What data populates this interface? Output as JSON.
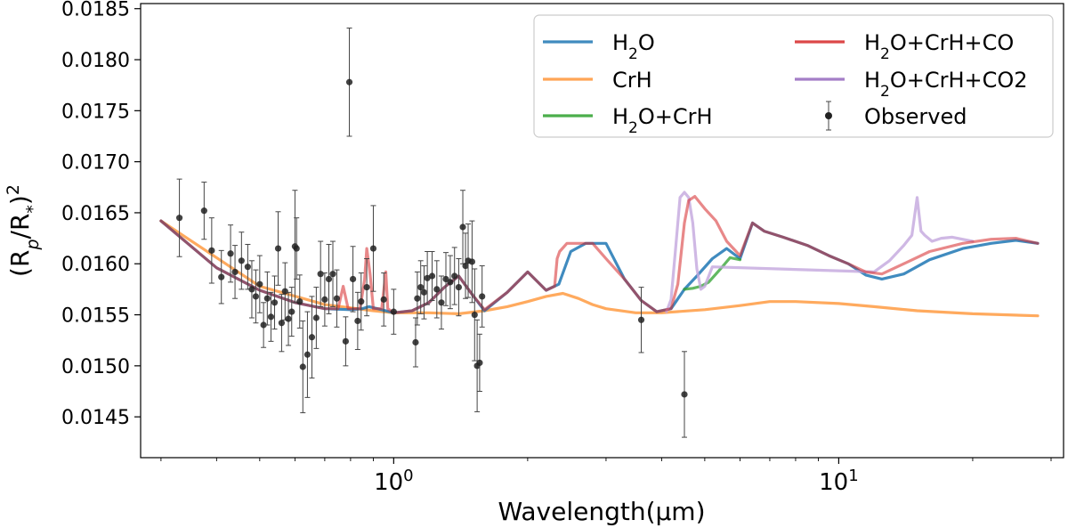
{
  "chart_data": {
    "type": "line",
    "title": "",
    "xlabel": "Wavelength(μm)",
    "ylabel": "(Rp/R*)^2",
    "xscale": "log",
    "xlim": [
      0.27,
      32
    ],
    "ylim": [
      0.0141,
      0.01855
    ],
    "x_ticks": [
      1,
      10
    ],
    "x_tick_labels": [
      "10^0",
      "10^1"
    ],
    "y_ticks": [
      0.0145,
      0.015,
      0.0155,
      0.016,
      0.0165,
      0.017,
      0.0175,
      0.018,
      0.0185
    ],
    "y_tick_labels": [
      "0.0145",
      "0.0150",
      "0.0155",
      "0.0160",
      "0.0165",
      "0.0170",
      "0.0175",
      "0.0180",
      "0.0185"
    ],
    "legend": {
      "location": "top-right",
      "columns": 2,
      "entries": [
        {
          "label": "H2O",
          "color": "#1f77b4"
        },
        {
          "label": "CrH",
          "color": "#ff7f0e"
        },
        {
          "label": "H2O+CrH",
          "color": "#2ca02c"
        },
        {
          "label": "H2O+CrH+CO",
          "color": "#d62728"
        },
        {
          "label": "H2O+CrH+CO2",
          "color": "#9467bd"
        },
        {
          "label": "Observed",
          "color": "#222222"
        }
      ]
    },
    "series": [
      {
        "name": "H2O",
        "color": "#1f77b4",
        "x": [
          0.3,
          0.4,
          0.5,
          0.6,
          0.7,
          0.8,
          0.85,
          0.88,
          0.92,
          1.0,
          1.1,
          1.2,
          1.3,
          1.4,
          1.5,
          1.6,
          1.8,
          2.0,
          2.2,
          2.35,
          2.5,
          2.7,
          3.0,
          3.3,
          3.6,
          3.9,
          4.2,
          4.5,
          4.8,
          5.2,
          5.6,
          6.0,
          6.4,
          6.8,
          7.5,
          8.5,
          9.5,
          10.5,
          11.5,
          12.5,
          14,
          16,
          19,
          22,
          25,
          28
        ],
        "y": [
          0.01642,
          0.01596,
          0.01574,
          0.01562,
          0.01556,
          0.01555,
          0.01556,
          0.01558,
          0.01556,
          0.01552,
          0.01554,
          0.01562,
          0.01577,
          0.01588,
          0.0157,
          0.01554,
          0.01572,
          0.01592,
          0.01574,
          0.0158,
          0.01612,
          0.0162,
          0.0162,
          0.01585,
          0.01564,
          0.01553,
          0.01556,
          0.01575,
          0.01588,
          0.01605,
          0.01615,
          0.01605,
          0.0164,
          0.01632,
          0.01626,
          0.01618,
          0.01608,
          0.016,
          0.01589,
          0.01585,
          0.0159,
          0.01604,
          0.01615,
          0.0162,
          0.01623,
          0.0162
        ]
      },
      {
        "name": "CrH",
        "color": "#ffaa5e",
        "x": [
          0.3,
          0.5,
          0.7,
          0.9,
          1.0,
          1.2,
          1.4,
          1.6,
          1.8,
          2.0,
          2.2,
          2.4,
          2.6,
          2.8,
          3.0,
          3.5,
          4.0,
          5.0,
          6.0,
          7.0,
          8.0,
          10,
          12,
          15,
          20,
          28
        ],
        "y": [
          0.01642,
          0.01578,
          0.0156,
          0.01554,
          0.01552,
          0.01552,
          0.01551,
          0.01554,
          0.01558,
          0.01563,
          0.01568,
          0.01571,
          0.01566,
          0.0156,
          0.01556,
          0.01552,
          0.01552,
          0.01555,
          0.01559,
          0.01563,
          0.01563,
          0.01561,
          0.01558,
          0.01554,
          0.01551,
          0.01549
        ]
      },
      {
        "name": "H2O+CrH",
        "color": "#2ca02c",
        "x": [
          4.5,
          4.7,
          4.9,
          5.1,
          5.3,
          5.5,
          5.7,
          6.0
        ],
        "y": [
          0.01575,
          0.01576,
          0.01578,
          0.01582,
          0.0159,
          0.01598,
          0.01606,
          0.01604
        ]
      },
      {
        "name": "H2O+CrH+CO",
        "color": "#d62728",
        "x": [
          0.3,
          0.4,
          0.5,
          0.6,
          0.7,
          0.75,
          0.77,
          0.79,
          0.82,
          0.84,
          0.86,
          0.87,
          0.885,
          0.9,
          0.94,
          0.96,
          0.97,
          1.0,
          1.1,
          1.2,
          1.3,
          1.4,
          1.5,
          1.6,
          1.8,
          2.0,
          2.2,
          2.3,
          2.33,
          2.36,
          2.45,
          2.6,
          2.8,
          3.0,
          3.3,
          3.6,
          3.9,
          4.2,
          4.35,
          4.5,
          4.6,
          4.75,
          5.0,
          5.3,
          5.6,
          6.0,
          6.4,
          6.8,
          7.5,
          8.5,
          9.5,
          10.5,
          11.5,
          12.5,
          14,
          16,
          19,
          22,
          25,
          28
        ],
        "y": [
          0.01642,
          0.01596,
          0.01574,
          0.01562,
          0.01556,
          0.01556,
          0.01578,
          0.01556,
          0.01556,
          0.01556,
          0.01584,
          0.01615,
          0.0159,
          0.01556,
          0.01556,
          0.01592,
          0.01556,
          0.01552,
          0.01554,
          0.01562,
          0.01577,
          0.01588,
          0.0157,
          0.01555,
          0.01572,
          0.01592,
          0.01574,
          0.01578,
          0.01605,
          0.01612,
          0.0162,
          0.0162,
          0.0162,
          0.01605,
          0.01585,
          0.01564,
          0.01553,
          0.01556,
          0.0158,
          0.0164,
          0.01662,
          0.01666,
          0.01654,
          0.01642,
          0.01622,
          0.01608,
          0.0164,
          0.01632,
          0.01626,
          0.01618,
          0.01608,
          0.016,
          0.01592,
          0.0159,
          0.016,
          0.01612,
          0.0162,
          0.01624,
          0.01625,
          0.0162
        ]
      },
      {
        "name": "H2O+CrH+CO2",
        "color": "#c3a6dd",
        "x": [
          4.1,
          4.2,
          4.3,
          4.4,
          4.5,
          4.6,
          4.7,
          4.8,
          4.9,
          5.0,
          5.2,
          12.0,
          13.0,
          14.0,
          14.6,
          15.0,
          15.3,
          15.6,
          16.2,
          17,
          18,
          20
        ],
        "y": [
          0.01553,
          0.01565,
          0.01615,
          0.01665,
          0.0167,
          0.01665,
          0.0164,
          0.01595,
          0.01575,
          0.01578,
          0.01597,
          0.01592,
          0.01603,
          0.01618,
          0.01628,
          0.01665,
          0.01632,
          0.01628,
          0.01622,
          0.01625,
          0.01626,
          0.01622
        ]
      }
    ],
    "observed": {
      "label": "Observed",
      "color": "#222222",
      "points": [
        [
          0.33,
          0.01645,
          0.00038
        ],
        [
          0.375,
          0.01652,
          0.00028
        ],
        [
          0.39,
          0.01613,
          0.00032
        ],
        [
          0.41,
          0.01587,
          0.00026
        ],
        [
          0.43,
          0.0161,
          0.00028
        ],
        [
          0.44,
          0.01592,
          0.00026
        ],
        [
          0.455,
          0.01603,
          0.00028
        ],
        [
          0.47,
          0.01597,
          0.00022
        ],
        [
          0.48,
          0.01575,
          0.00028
        ],
        [
          0.49,
          0.01568,
          0.00026
        ],
        [
          0.5,
          0.0158,
          0.00028
        ],
        [
          0.51,
          0.0154,
          0.00022
        ],
        [
          0.52,
          0.01566,
          0.00026
        ],
        [
          0.53,
          0.01548,
          0.00024
        ],
        [
          0.54,
          0.01562,
          0.00026
        ],
        [
          0.55,
          0.01615,
          0.00036
        ],
        [
          0.56,
          0.01542,
          0.00028
        ],
        [
          0.57,
          0.01573,
          0.00028
        ],
        [
          0.58,
          0.01546,
          0.00026
        ],
        [
          0.59,
          0.01553,
          0.00024
        ],
        [
          0.6,
          0.01617,
          0.00055
        ],
        [
          0.605,
          0.01615,
          0.0003
        ],
        [
          0.615,
          0.01563,
          0.00026
        ],
        [
          0.625,
          0.01499,
          0.00045
        ],
        [
          0.64,
          0.01511,
          0.00042
        ],
        [
          0.655,
          0.01528,
          0.0004
        ],
        [
          0.67,
          0.01547,
          0.0003
        ],
        [
          0.685,
          0.0159,
          0.00032
        ],
        [
          0.7,
          0.01565,
          0.00026
        ],
        [
          0.715,
          0.01585,
          0.00034
        ],
        [
          0.73,
          0.0159,
          0.00032
        ],
        [
          0.745,
          0.01566,
          0.00028
        ],
        [
          0.78,
          0.01524,
          0.00024
        ],
        [
          0.795,
          0.01778,
          0.00053
        ],
        [
          0.81,
          0.01585,
          0.00032
        ],
        [
          0.83,
          0.01544,
          0.00028
        ],
        [
          0.845,
          0.01563,
          0.00028
        ],
        [
          0.87,
          0.01577,
          0.00028
        ],
        [
          0.9,
          0.01615,
          0.00042
        ],
        [
          0.95,
          0.01565,
          0.00026
        ],
        [
          1.0,
          0.01553,
          0.00022
        ],
        [
          1.12,
          0.01523,
          0.00024
        ],
        [
          1.13,
          0.01566,
          0.00026
        ],
        [
          1.15,
          0.01577,
          0.00026
        ],
        [
          1.17,
          0.01572,
          0.00026
        ],
        [
          1.19,
          0.01586,
          0.00026
        ],
        [
          1.22,
          0.01588,
          0.00024
        ],
        [
          1.25,
          0.01575,
          0.00028
        ],
        [
          1.28,
          0.01562,
          0.00026
        ],
        [
          1.31,
          0.01585,
          0.00026
        ],
        [
          1.34,
          0.01582,
          0.00026
        ],
        [
          1.37,
          0.01588,
          0.00028
        ],
        [
          1.4,
          0.01577,
          0.00028
        ],
        [
          1.43,
          0.01636,
          0.00036
        ],
        [
          1.45,
          0.01598,
          0.00032
        ],
        [
          1.47,
          0.01603,
          0.00036
        ],
        [
          1.5,
          0.01602,
          0.0004
        ],
        [
          1.52,
          0.0155,
          0.00045
        ],
        [
          1.54,
          0.015,
          0.00045
        ],
        [
          1.56,
          0.01503,
          0.00028
        ],
        [
          1.58,
          0.01568,
          0.0003
        ],
        [
          3.6,
          0.01545,
          0.00032
        ],
        [
          4.5,
          0.01472,
          0.00042
        ]
      ]
    }
  }
}
